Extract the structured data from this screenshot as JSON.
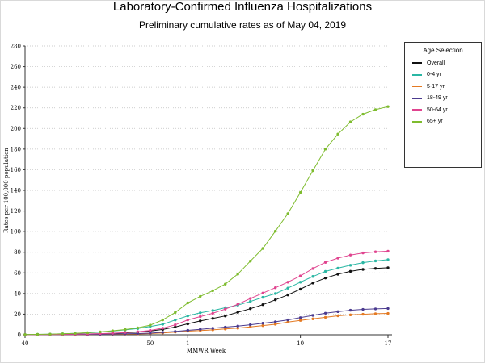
{
  "chart_data": {
    "type": "line",
    "title": "Laboratory-Confirmed Influenza Hospitalizations",
    "subtitle": "Preliminary cumulative rates as of May 04, 2019",
    "xlabel": "MMWR Week",
    "ylabel": "Rates per 100,000 population",
    "ylim": [
      0,
      280
    ],
    "yticks": [
      "0",
      "20",
      "40",
      "60",
      "80",
      "100",
      "120",
      "140",
      "160",
      "180",
      "200",
      "220",
      "240",
      "260",
      "280"
    ],
    "x_week_index_range": [
      0,
      30
    ],
    "xticks": [
      {
        "index": 0,
        "label": "40"
      },
      {
        "index": 10,
        "label": "50"
      },
      {
        "index": 13,
        "label": "1"
      },
      {
        "index": 22,
        "label": "10"
      },
      {
        "index": 29,
        "label": "17"
      }
    ],
    "x_weeks": [
      "40",
      "41",
      "42",
      "43",
      "44",
      "45",
      "46",
      "47",
      "48",
      "49",
      "50",
      "51",
      "52",
      "1",
      "2",
      "3",
      "4",
      "5",
      "6",
      "7",
      "8",
      "9",
      "10",
      "11",
      "12",
      "13",
      "14",
      "15",
      "16",
      "17"
    ],
    "grid": "horizontal dotted",
    "legend": {
      "title": "Age Selection",
      "position": "right",
      "entries": [
        "Overall",
        "0-4 yr",
        "5-17 yr",
        "18-49 yr",
        "50-64 yr",
        "65+ yr"
      ]
    },
    "series": [
      {
        "name": "Overall",
        "color": "#111111",
        "values": [
          0.1,
          0.2,
          0.3,
          0.4,
          0.6,
          0.8,
          1.0,
          1.4,
          1.9,
          2.6,
          3.6,
          5.2,
          7.5,
          10.6,
          13.4,
          15.8,
          18.2,
          21.8,
          25.3,
          29.2,
          33.9,
          38.6,
          44.2,
          50.2,
          55.0,
          58.7,
          61.5,
          63.4,
          64.3,
          65.0
        ]
      },
      {
        "name": "0-4 yr",
        "color": "#2ab7a4",
        "values": [
          0.2,
          0.4,
          0.6,
          0.9,
          1.3,
          1.9,
          2.6,
          3.6,
          4.8,
          6.0,
          8.0,
          10.2,
          14.3,
          18.3,
          21.3,
          23.5,
          26.2,
          28.7,
          32.3,
          36.3,
          39.9,
          45.2,
          51.0,
          56.5,
          61.4,
          64.6,
          67.4,
          69.9,
          71.6,
          72.8
        ]
      },
      {
        "name": "5-17 yr",
        "color": "#e47a23",
        "values": [
          0.0,
          0.1,
          0.1,
          0.2,
          0.2,
          0.3,
          0.4,
          0.5,
          0.6,
          0.8,
          1.2,
          1.8,
          2.6,
          3.5,
          4.1,
          4.8,
          5.6,
          6.4,
          7.6,
          8.9,
          10.2,
          12.3,
          13.9,
          15.4,
          16.9,
          18.4,
          19.3,
          19.9,
          20.4,
          20.7
        ]
      },
      {
        "name": "18-49 yr",
        "color": "#4b3b8f",
        "values": [
          0.0,
          0.1,
          0.1,
          0.2,
          0.3,
          0.4,
          0.5,
          0.7,
          0.9,
          1.2,
          1.6,
          2.4,
          3.2,
          4.3,
          5.3,
          6.3,
          7.4,
          8.4,
          9.7,
          11.2,
          12.6,
          14.4,
          16.6,
          18.8,
          20.9,
          22.4,
          23.8,
          24.6,
          25.1,
          25.5
        ]
      },
      {
        "name": "50-64 yr",
        "color": "#e0448f",
        "values": [
          0.1,
          0.2,
          0.3,
          0.4,
          0.6,
          0.8,
          1.1,
          1.5,
          2.2,
          3.0,
          4.2,
          6.4,
          9.6,
          14.4,
          17.6,
          20.8,
          24.9,
          29.6,
          35.1,
          40.4,
          45.6,
          51.0,
          57.0,
          64.2,
          70.2,
          74.3,
          77.3,
          79.3,
          80.4,
          81.0
        ]
      },
      {
        "name": "65+ yr",
        "color": "#7ebc2e",
        "values": [
          0.2,
          0.4,
          0.6,
          0.9,
          1.3,
          2.0,
          2.8,
          3.9,
          5.1,
          6.7,
          9.3,
          14.4,
          21.6,
          30.9,
          37.2,
          42.7,
          49.1,
          58.8,
          71.4,
          83.7,
          100.4,
          117.4,
          138.0,
          159.2,
          180.0,
          194.6,
          206.4,
          213.9,
          218.3,
          221.2
        ]
      }
    ]
  }
}
